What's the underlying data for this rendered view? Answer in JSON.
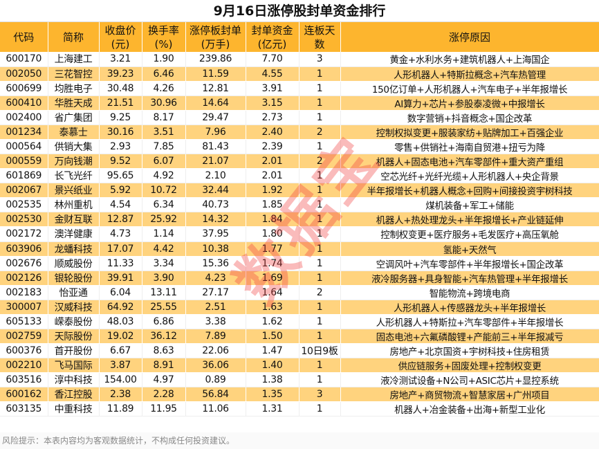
{
  "title": "9月16日涨停股封单资金排行",
  "headers": [
    "代码",
    "简称",
    "收盘价\n(元)",
    "换手率\n(%)",
    "涨停板封单\n(万手)",
    "封单资金\n(亿元)",
    "连板天\n数",
    "涨停原因"
  ],
  "rows": [
    [
      "600170",
      "上海建工",
      "3.21",
      "1.90",
      "239.86",
      "7.70",
      "3",
      "黄金+水利水务+建筑机器人+上海国企"
    ],
    [
      "002050",
      "三花智控",
      "39.23",
      "6.46",
      "11.59",
      "4.55",
      "1",
      "人形机器人+特斯拉概念+汽车热管理"
    ],
    [
      "600699",
      "均胜电子",
      "30.48",
      "4.26",
      "12.81",
      "3.91",
      "1",
      "150亿订单+人形机器人+汽车电子+半年报增长"
    ],
    [
      "600410",
      "华胜天成",
      "21.51",
      "30.96",
      "14.64",
      "3.15",
      "1",
      "AI算力+芯片+参股泰凌微+中报增长"
    ],
    [
      "002400",
      "省广集团",
      "9.25",
      "8.17",
      "29.47",
      "2.73",
      "1",
      "数字营销+抖音概念+国企改革"
    ],
    [
      "001234",
      "泰慕士",
      "30.16",
      "3.51",
      "7.96",
      "2.40",
      "2",
      "控制权拟变更+服装家纺+贴牌加工+百强企业"
    ],
    [
      "000564",
      "供销大集",
      "2.93",
      "7.85",
      "81.43",
      "2.39",
      "1",
      "零售+供销社+海南自贸港+扭亏为降"
    ],
    [
      "000559",
      "万向钱潮",
      "9.52",
      "6.07",
      "21.07",
      "2.01",
      "2",
      "机器人+固态电池+汽车零部件+重大资产重组"
    ],
    [
      "601869",
      "长飞光纤",
      "95.65",
      "4.92",
      "2.10",
      "2.01",
      "1",
      "空芯光纤+光纤光缆+人形机器人+央企背景"
    ],
    [
      "002067",
      "景兴纸业",
      "5.92",
      "10.72",
      "32.44",
      "1.92",
      "1",
      "半年报增长+机器人概念+回购+间接投资宇树科技"
    ],
    [
      "002535",
      "林州重机",
      "4.54",
      "6.34",
      "40.73",
      "1.85",
      "1",
      "煤机装备+军工+储能"
    ],
    [
      "002530",
      "金财互联",
      "12.87",
      "25.92",
      "14.32",
      "1.84",
      "1",
      "机器人+热处理龙头+半年报增长+产业链延伸"
    ],
    [
      "002172",
      "澳洋健康",
      "4.73",
      "1.14",
      "37.95",
      "1.80",
      "1",
      "控制权变更+医疗服务+毛发医疗+高压氧舱"
    ],
    [
      "603906",
      "龙蟠科技",
      "17.07",
      "4.42",
      "10.38",
      "1.77",
      "1",
      "氢能+天然气"
    ],
    [
      "002676",
      "顺威股份",
      "11.33",
      "3.34",
      "15.36",
      "1.74",
      "1",
      "空调风叶+汽车零部件+半年报增长+国企改革"
    ],
    [
      "002126",
      "银轮股份",
      "39.91",
      "3.90",
      "4.23",
      "1.69",
      "1",
      "液冷服务器+具身智能+汽车热管理+半年报增长"
    ],
    [
      "002183",
      "怡亚通",
      "6.04",
      "13.11",
      "27.17",
      "1.64",
      "2",
      "智能物流+跨境电商"
    ],
    [
      "300007",
      "汉威科技",
      "64.92",
      "25.55",
      "2.51",
      "1.63",
      "1",
      "人形机器人+传感器龙头+半年报增长"
    ],
    [
      "605133",
      "嵘泰股份",
      "48.03",
      "6.86",
      "3.38",
      "1.62",
      "1",
      "人形机器人+特斯拉+汽车零部件+半年报增长"
    ],
    [
      "002759",
      "天际股份",
      "19.02",
      "36.12",
      "7.89",
      "1.50",
      "1",
      "固态电池+六氟磷酸锂+产能前三+半年报减亏"
    ],
    [
      "600376",
      "首开股份",
      "6.67",
      "8.63",
      "22.06",
      "1.47",
      "10日9板",
      "房地产+北京国资+宇树科技+住房租赁"
    ],
    [
      "002210",
      "飞马国际",
      "3.87",
      "8.91",
      "36.06",
      "1.40",
      "1",
      "供应链服务+固废处理+控制权变更"
    ],
    [
      "603516",
      "淳中科技",
      "154.00",
      "4.97",
      "0.89",
      "1.38",
      "1",
      "液冷测试设备+N公司+ASIC芯片+显控系统"
    ],
    [
      "600162",
      "香江控股",
      "2.38",
      "2.28",
      "56.84",
      "1.35",
      "3",
      "房地产+商贸物流+智慧家居+广州项目"
    ],
    [
      "603135",
      "中重科技",
      "11.89",
      "11.95",
      "11.06",
      "1.31",
      "1",
      "机器人+冶金装备+出海+新型工业化"
    ]
  ],
  "footer": "风险提示：本表内容均为客观数据统计，不构成任何投资建议。",
  "watermark": "数据宝",
  "colors": {
    "header": "#FDB52E",
    "alt_row": "#FFD37E",
    "watermark": "#F03C3C"
  }
}
